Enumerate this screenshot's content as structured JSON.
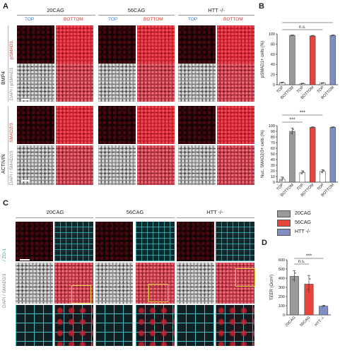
{
  "panel_labels": {
    "a": "A",
    "b": "B",
    "c": "C",
    "d": "D"
  },
  "panel_a": {
    "columns": [
      "20CAG",
      "56CAG",
      "HTT -/-"
    ],
    "top_label": "TOP",
    "bottom_label": "BOTTOM",
    "row_groups": [
      "BMP4",
      "ACTIVIN"
    ],
    "row_labels": {
      "bmp4_signal": "pSMAD1",
      "bmp4_merge": "DAPI / pSMAD1",
      "activin_signal": "SMAD2/3",
      "activin_merge": "DAPI / SMAD2/3"
    },
    "colors": {
      "top": "#2b7bd9",
      "bottom": "#e0322c"
    }
  },
  "panel_c": {
    "columns": [
      "20CAG",
      "56CAG",
      "HTT -/-"
    ],
    "row_labels": {
      "zo1": "/ ZO-1",
      "merge": "DAPI / SMAD2/3"
    }
  },
  "legend": {
    "entries": [
      {
        "name": "20CAG",
        "color": "#9a9a9a"
      },
      {
        "name": "56CAG",
        "color": "#e8453c"
      },
      {
        "name": "HTT -/-",
        "color": "#7f8fc4"
      }
    ]
  },
  "chart_data": [
    {
      "type": "bar",
      "id": "b_top",
      "ylabel": "pSMAD1+ cells (%)",
      "ylim": [
        0,
        100
      ],
      "yticks": [
        0,
        20,
        40,
        60,
        80,
        100
      ],
      "categories": [
        "TOP",
        "BOTTOM",
        "TOP",
        "BOTTOM",
        "TOP",
        "BOTTOM"
      ],
      "groups": [
        "20CAG",
        "56CAG",
        "HTT -/-"
      ],
      "values": [
        4,
        97,
        2,
        96,
        3,
        97
      ],
      "errors": [
        1,
        1,
        1,
        1,
        1,
        1
      ],
      "significance": [
        "n.s.",
        "n.s."
      ]
    },
    {
      "type": "bar",
      "id": "b_bottom",
      "ylabel": "Nuc. SMAD2/3+ cells (%)",
      "ylim": [
        0,
        100
      ],
      "yticks": [
        0,
        10,
        20,
        30,
        40,
        50,
        60,
        70,
        80,
        90,
        100
      ],
      "categories": [
        "TOP",
        "BOTTOM",
        "TOP",
        "BOTTOM",
        "TOP",
        "BOTTOM"
      ],
      "groups": [
        "20CAG",
        "56CAG",
        "HTT -/-"
      ],
      "values": [
        5,
        90,
        17,
        97,
        19,
        97
      ],
      "errors": [
        4,
        6,
        3,
        1,
        3,
        1
      ],
      "significance": [
        "***",
        "***"
      ]
    },
    {
      "type": "bar",
      "id": "d",
      "ylabel": "TEER (Ωcm²)",
      "ylim": [
        0,
        600
      ],
      "yticks": [
        0,
        100,
        200,
        300,
        400,
        500,
        600
      ],
      "categories": [
        "20CAG",
        "56CAG",
        "HTT -/-"
      ],
      "values": [
        420,
        335,
        95
      ],
      "errors": [
        60,
        95,
        10
      ],
      "significance": [
        "n.s.",
        "***"
      ]
    }
  ]
}
